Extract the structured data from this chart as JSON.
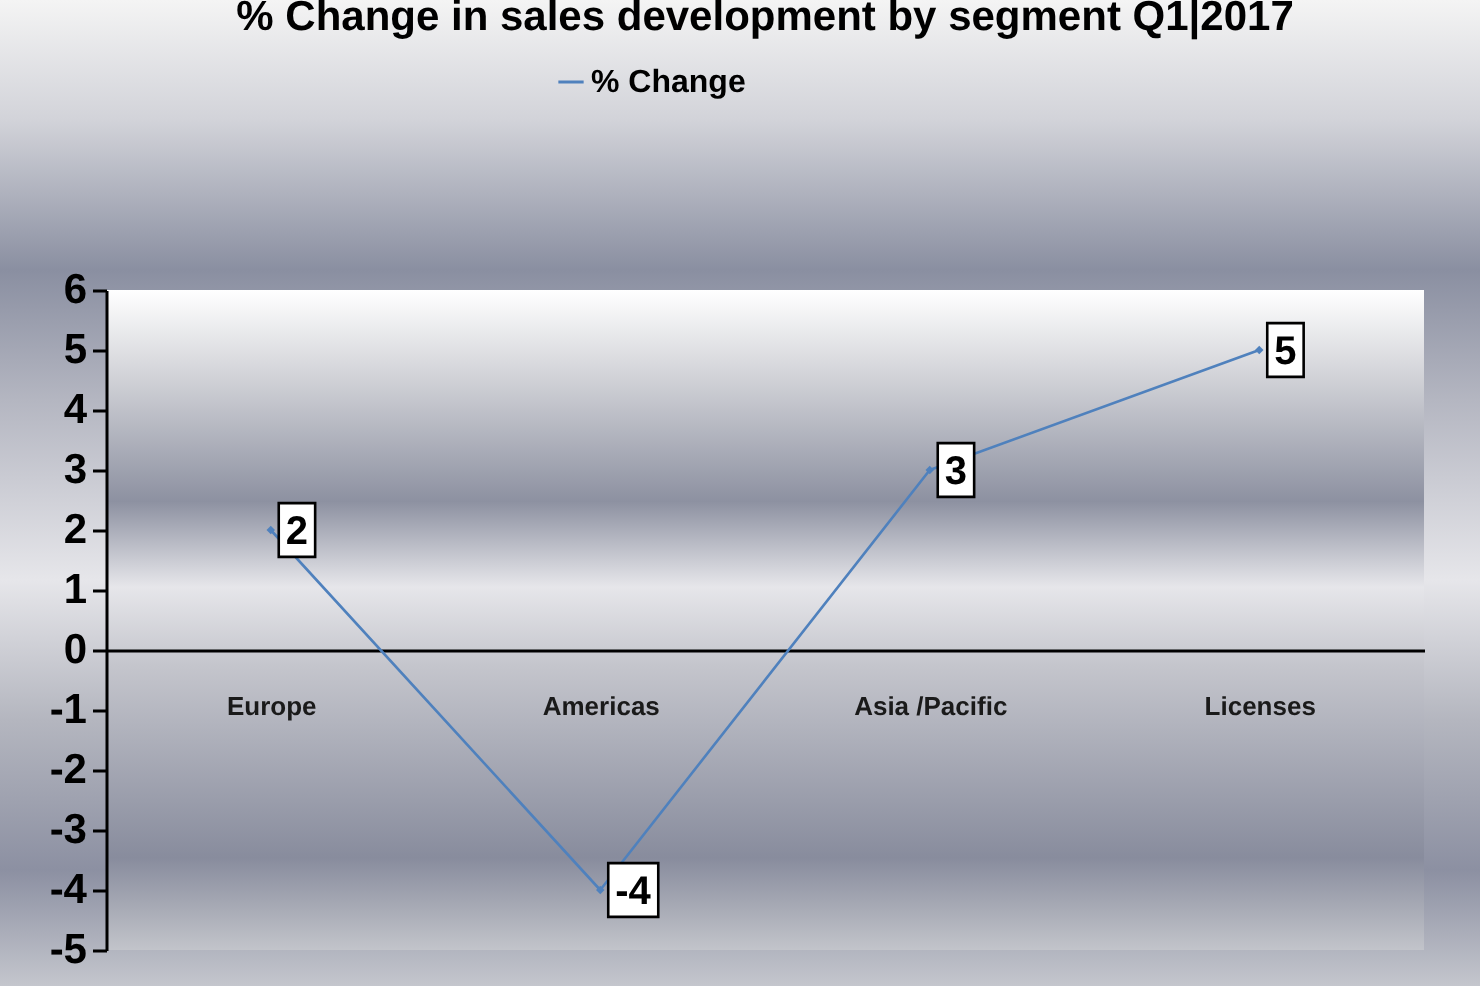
{
  "chart_data": {
    "type": "line",
    "title": "% Change in sales development by segment Q1|2017",
    "categories": [
      "Europe",
      "Americas",
      "Asia /Pacific",
      "Licenses"
    ],
    "series": [
      {
        "name": "% Change",
        "color": "#4f81bd",
        "values": [
          2,
          -4,
          3,
          5
        ]
      }
    ],
    "ylim": [
      -5,
      6
    ],
    "yticks": [
      -5,
      -4,
      -3,
      -2,
      -1,
      0,
      1,
      2,
      3,
      4,
      5,
      6
    ],
    "legend": "top",
    "marker": "diamond",
    "line_style": "solid",
    "data_labels": true
  }
}
